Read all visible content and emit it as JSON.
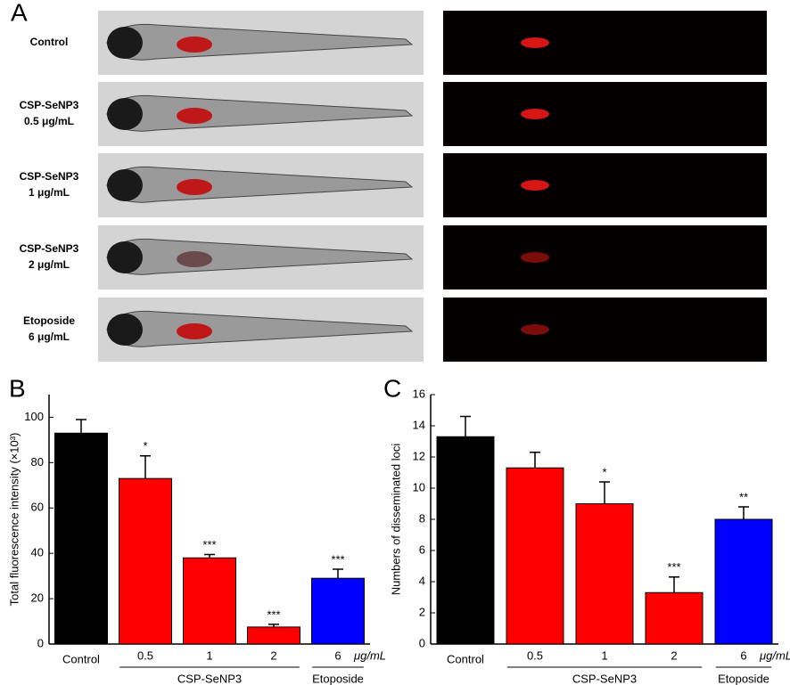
{
  "panel_a": {
    "label": "A",
    "rows": [
      [
        "Control"
      ],
      [
        "CSP-SeNP3",
        "0.5 μg/mL"
      ],
      [
        "CSP-SeNP3",
        "1 μg/mL"
      ],
      [
        "CSP-SeNP3",
        "2 μg/mL"
      ],
      [
        "Etoposide",
        "6 μg/mL"
      ]
    ]
  },
  "chart_data": [
    {
      "type": "bar",
      "panel": "B",
      "y_label": "Total fluorescence intensity (×10³)",
      "categories": [
        "Control",
        "0.5",
        "1",
        "2",
        "6"
      ],
      "values": [
        93,
        73,
        38,
        7.5,
        29
      ],
      "errors": [
        6,
        10,
        1.5,
        1.2,
        4
      ],
      "annotations": [
        null,
        "*",
        "***",
        "***",
        "***"
      ],
      "colors": [
        "#000000",
        "#ff0000",
        "#ff0000",
        "#ff0000",
        "#0000ff"
      ],
      "group_labels": [
        "CSP-SeNP3",
        "Etoposide"
      ],
      "unit_label": "μg/mL",
      "ylim": [
        0,
        110
      ],
      "yticks": [
        0,
        20,
        40,
        60,
        80,
        100
      ]
    },
    {
      "type": "bar",
      "panel": "C",
      "y_label": "Numbers of disseminated loci",
      "categories": [
        "Control",
        "0.5",
        "1",
        "2",
        "6"
      ],
      "values": [
        13.3,
        11.3,
        9.0,
        3.3,
        8.0
      ],
      "errors": [
        1.3,
        1.0,
        1.4,
        1.0,
        0.8
      ],
      "annotations": [
        null,
        null,
        "*",
        "***",
        "**"
      ],
      "colors": [
        "#000000",
        "#ff0000",
        "#ff0000",
        "#ff0000",
        "#0000ff"
      ],
      "group_labels": [
        "CSP-SeNP3",
        "Etoposide"
      ],
      "unit_label": "μg/mL",
      "ylim": [
        0,
        16
      ],
      "yticks": [
        0,
        2,
        4,
        6,
        8,
        10,
        12,
        14,
        16
      ]
    }
  ]
}
